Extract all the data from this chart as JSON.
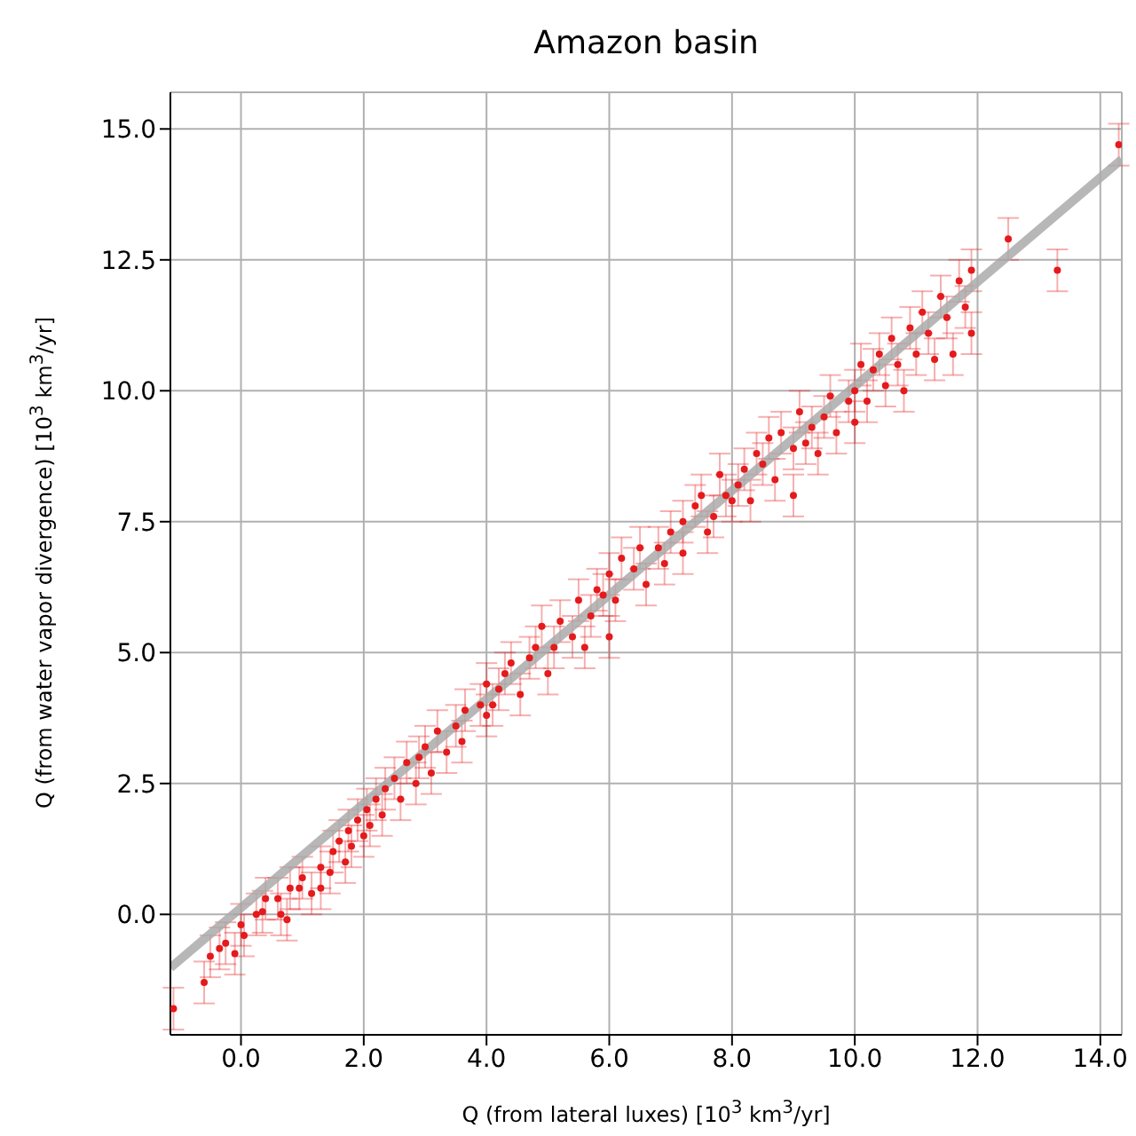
{
  "chart_data": {
    "type": "scatter",
    "title": "Amazon basin",
    "xlabel": "Q (from lateral luxes) [10$^{3}$ km$^{3}$/yr]",
    "ylabel": "Q (from water vapor divergence) [10$^{3}$ km$^{3}$/yr]",
    "xlim": [
      -1.15,
      14.35
    ],
    "ylim": [
      -2.3,
      15.7
    ],
    "xticks": [
      {
        "value": 0,
        "label": "0.0"
      },
      {
        "value": 2,
        "label": "2.0"
      },
      {
        "value": 4,
        "label": "4.0"
      },
      {
        "value": 6,
        "label": "6.0"
      },
      {
        "value": 8,
        "label": "8.0"
      },
      {
        "value": 10,
        "label": "10.0"
      },
      {
        "value": 12,
        "label": "12.0"
      },
      {
        "value": 14,
        "label": "14.0"
      }
    ],
    "yticks": [
      {
        "value": 0,
        "label": "0.0"
      },
      {
        "value": 2.5,
        "label": "2.5"
      },
      {
        "value": 5,
        "label": "5.0"
      },
      {
        "value": 7.5,
        "label": "7.5"
      },
      {
        "value": 10,
        "label": "10.0"
      },
      {
        "value": 12.5,
        "label": "12.5"
      },
      {
        "value": 15,
        "label": "15.0"
      }
    ],
    "grid": true,
    "legend": false,
    "marker": "circle",
    "series": [
      {
        "color": "#e41a1c",
        "errors": [
          0.4,
          0.4,
          0.4,
          0.4,
          0.4,
          0.4,
          0.4,
          0.4,
          0.4,
          0.4,
          0.4,
          0.4,
          0.4,
          0.4,
          0.4,
          0.4,
          0.4,
          0.4,
          0.4,
          0.4,
          0.4,
          0.4,
          0.4,
          0.4,
          0.4,
          0.4,
          0.4,
          0.4,
          0.4,
          0.4,
          0.4,
          0.4,
          0.4,
          0.4,
          0.4,
          0.4,
          0.4,
          0.4,
          0.4,
          0.4,
          0.4,
          0.4,
          0.4,
          0.4,
          0.4,
          0.4,
          0.4,
          0.4,
          0.4,
          0.4,
          0.4,
          0.4,
          0.4,
          0.4,
          0.4,
          0.4,
          0.4,
          0.4,
          0.4,
          0.4,
          0.4,
          0.4,
          0.4,
          0.4,
          0.4,
          0.4,
          0.4,
          0.4,
          0.4,
          0.4,
          0.4,
          0.4,
          0.4,
          0.4,
          0.4,
          0.4,
          0.4,
          0.4,
          0.4,
          0.4,
          0.4,
          0.4,
          0.4,
          0.4,
          0.4,
          0.4,
          0.4,
          0.4,
          0.4,
          0.4,
          0.4,
          0.4,
          0.4,
          0.4,
          0.4,
          0.4,
          0.4,
          0.4,
          0.4,
          0.4,
          0.4,
          0.4,
          0.4,
          0.4,
          0.4,
          0.4,
          0.4,
          0.4,
          0.4,
          0.4,
          0.4,
          0.4,
          0.4,
          0.4,
          0.4,
          0.4,
          0.4,
          0.4,
          0.4,
          0.4,
          0.4,
          0.4,
          0.4,
          0.4,
          0.4,
          0.4,
          0.4
        ],
        "x": [
          -1.1,
          -0.6,
          -0.5,
          -0.35,
          -0.25,
          -0.1,
          0.0,
          0.05,
          0.25,
          0.35,
          0.4,
          0.6,
          0.65,
          0.75,
          0.8,
          0.95,
          1.0,
          1.15,
          1.3,
          1.3,
          1.45,
          1.5,
          1.6,
          1.7,
          1.75,
          1.8,
          1.9,
          2.0,
          2.05,
          2.1,
          2.2,
          2.3,
          2.35,
          2.5,
          2.6,
          2.7,
          2.85,
          2.9,
          3.0,
          3.1,
          3.2,
          3.35,
          3.5,
          3.6,
          3.65,
          3.9,
          4.0,
          4.0,
          4.1,
          4.2,
          4.3,
          4.4,
          4.55,
          4.7,
          4.8,
          4.9,
          5.0,
          5.1,
          5.2,
          5.4,
          5.5,
          5.6,
          5.7,
          5.8,
          5.9,
          6.0,
          6.0,
          6.1,
          6.2,
          6.4,
          6.5,
          6.6,
          6.8,
          6.9,
          7.0,
          7.2,
          7.2,
          7.4,
          7.5,
          7.6,
          7.7,
          7.8,
          7.9,
          8.0,
          8.1,
          8.2,
          8.3,
          8.4,
          8.5,
          8.6,
          8.7,
          8.8,
          9.0,
          9.0,
          9.1,
          9.2,
          9.3,
          9.4,
          9.5,
          9.6,
          9.7,
          9.9,
          10.0,
          10.0,
          10.1,
          10.2,
          10.3,
          10.4,
          10.5,
          10.6,
          10.7,
          10.8,
          10.9,
          11.0,
          11.1,
          11.2,
          11.3,
          11.4,
          11.5,
          11.6,
          11.7,
          11.8,
          11.9,
          11.9,
          12.5,
          13.3,
          14.3
        ],
        "values": [
          -1.8,
          -1.3,
          -0.8,
          -0.65,
          -0.55,
          -0.75,
          -0.2,
          -0.4,
          0.0,
          0.05,
          0.3,
          0.3,
          0.0,
          -0.1,
          0.5,
          0.5,
          0.7,
          0.4,
          0.9,
          0.5,
          0.8,
          1.2,
          1.4,
          1.0,
          1.6,
          1.3,
          1.8,
          1.5,
          2.0,
          1.7,
          2.2,
          1.9,
          2.4,
          2.6,
          2.2,
          2.9,
          2.5,
          3.0,
          3.2,
          2.7,
          3.5,
          3.1,
          3.6,
          3.3,
          3.9,
          4.0,
          3.8,
          4.4,
          4.0,
          4.3,
          4.6,
          4.8,
          4.2,
          4.9,
          5.1,
          5.5,
          4.6,
          5.1,
          5.6,
          5.3,
          6.0,
          5.1,
          5.7,
          6.2,
          6.1,
          6.5,
          5.3,
          6.0,
          6.8,
          6.6,
          7.0,
          6.3,
          7.0,
          6.7,
          7.3,
          7.5,
          6.9,
          7.8,
          8.0,
          7.3,
          7.6,
          8.4,
          8.0,
          7.9,
          8.2,
          8.5,
          7.9,
          8.8,
          8.6,
          9.1,
          8.3,
          9.2,
          8.9,
          8.0,
          9.6,
          9.0,
          9.3,
          8.8,
          9.5,
          9.9,
          9.2,
          9.8,
          10.0,
          9.4,
          10.5,
          9.8,
          10.4,
          10.7,
          10.1,
          11.0,
          10.5,
          10.0,
          11.2,
          10.7,
          11.5,
          11.1,
          10.6,
          11.8,
          11.4,
          10.7,
          12.1,
          11.6,
          12.3,
          11.1,
          12.9,
          12.3,
          14.7
        ]
      },
      {
        "type": "line",
        "color": "#aaaaaa",
        "marker": "none",
        "x": [
          -1.15,
          14.35
        ],
        "values": [
          -1.02,
          14.42
        ]
      }
    ]
  }
}
